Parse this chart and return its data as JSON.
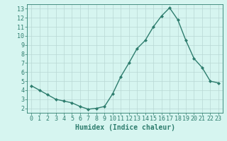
{
  "x": [
    0,
    1,
    2,
    3,
    4,
    5,
    6,
    7,
    8,
    9,
    10,
    11,
    12,
    13,
    14,
    15,
    16,
    17,
    18,
    19,
    20,
    21,
    22,
    23
  ],
  "y": [
    4.5,
    4.0,
    3.5,
    3.0,
    2.8,
    2.6,
    2.2,
    1.9,
    2.0,
    2.2,
    3.6,
    5.5,
    7.0,
    8.6,
    9.5,
    11.0,
    12.2,
    13.1,
    11.8,
    9.5,
    7.5,
    6.5,
    5.0,
    4.8
  ],
  "line_color": "#2e7d6e",
  "marker": "D",
  "marker_size": 2.0,
  "line_width": 1.0,
  "xlabel": "Humidex (Indice chaleur)",
  "xlabel_fontsize": 7,
  "bg_color": "#d6f5f0",
  "grid_color": "#b8d8d4",
  "xlim": [
    -0.5,
    23.5
  ],
  "ylim": [
    1.5,
    13.5
  ],
  "yticks": [
    2,
    3,
    4,
    5,
    6,
    7,
    8,
    9,
    10,
    11,
    12,
    13
  ],
  "xticks": [
    0,
    1,
    2,
    3,
    4,
    5,
    6,
    7,
    8,
    9,
    10,
    11,
    12,
    13,
    14,
    15,
    16,
    17,
    18,
    19,
    20,
    21,
    22,
    23
  ],
  "tick_fontsize": 6,
  "tick_color": "#2e7d6e"
}
